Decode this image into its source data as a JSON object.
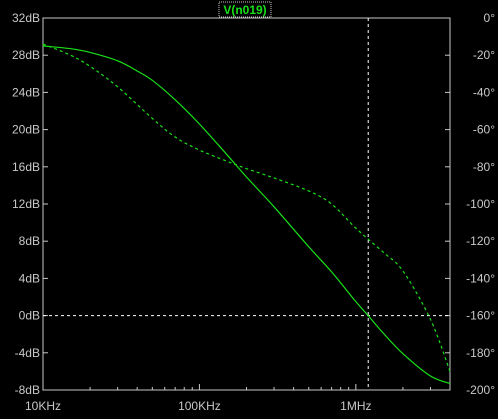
{
  "colors": {
    "background": "#000000",
    "frame": "#c8c8c8",
    "text": "#c8c8c8",
    "trace": "#18e018",
    "cursor": "#ffffff"
  },
  "chart_data": {
    "type": "line",
    "title": "V(n019)",
    "x_scale": "log",
    "xlim": [
      10000,
      4000000
    ],
    "x_ticks": [
      {
        "value": 10000,
        "label": "10KHz"
      },
      {
        "value": 100000,
        "label": "100KHz"
      },
      {
        "value": 1000000,
        "label": "1MHz"
      }
    ],
    "left_axis": {
      "ylim": [
        -8,
        32
      ],
      "ticks": [
        {
          "value": 32,
          "label": "32dB"
        },
        {
          "value": 28,
          "label": "28dB"
        },
        {
          "value": 24,
          "label": "24dB"
        },
        {
          "value": 20,
          "label": "20dB"
        },
        {
          "value": 16,
          "label": "16dB"
        },
        {
          "value": 12,
          "label": "12dB"
        },
        {
          "value": 8,
          "label": "8dB"
        },
        {
          "value": 4,
          "label": "4dB"
        },
        {
          "value": 0,
          "label": "0dB"
        },
        {
          "value": -4,
          "label": "-4dB"
        },
        {
          "value": -8,
          "label": "-8dB"
        }
      ]
    },
    "right_axis": {
      "ylim": [
        -200,
        0
      ],
      "ticks": [
        {
          "value": 0,
          "label": "0°"
        },
        {
          "value": -20,
          "label": "-20°"
        },
        {
          "value": -40,
          "label": "-40°"
        },
        {
          "value": -60,
          "label": "-60°"
        },
        {
          "value": -80,
          "label": "-80°"
        },
        {
          "value": -100,
          "label": "-100°"
        },
        {
          "value": -120,
          "label": "-120°"
        },
        {
          "value": -140,
          "label": "-140°"
        },
        {
          "value": -160,
          "label": "-160°"
        },
        {
          "value": -180,
          "label": "-180°"
        },
        {
          "value": -200,
          "label": "-200°"
        }
      ]
    },
    "series": [
      {
        "style": "solid",
        "axis": "left",
        "x": [
          10000,
          15000,
          20000,
          30000,
          40000,
          50000,
          70000,
          100000,
          150000,
          200000,
          300000,
          500000,
          700000,
          1000000,
          1200000,
          1500000,
          2000000,
          3000000,
          4000000
        ],
        "y": [
          29,
          28.7,
          28.3,
          27.4,
          26.3,
          25.3,
          23.2,
          20.6,
          17.3,
          14.9,
          11.7,
          7.4,
          4.7,
          1.5,
          0,
          -1.9,
          -4.1,
          -6.5,
          -7.3
        ]
      },
      {
        "style": "dashed",
        "axis": "right",
        "x": [
          10000,
          15000,
          20000,
          30000,
          50000,
          70000,
          100000,
          150000,
          200000,
          300000,
          500000,
          700000,
          1000000,
          1500000,
          2000000,
          3000000,
          4000000
        ],
        "y": [
          -14,
          -20,
          -26,
          -37,
          -54,
          -64,
          -71,
          -77,
          -81,
          -86,
          -93,
          -100,
          -113,
          -126,
          -136,
          -162,
          -190
        ]
      }
    ],
    "cursor": {
      "x": 1200000,
      "y": 0,
      "style": "dashed"
    },
    "grid": false,
    "legend": "none"
  }
}
